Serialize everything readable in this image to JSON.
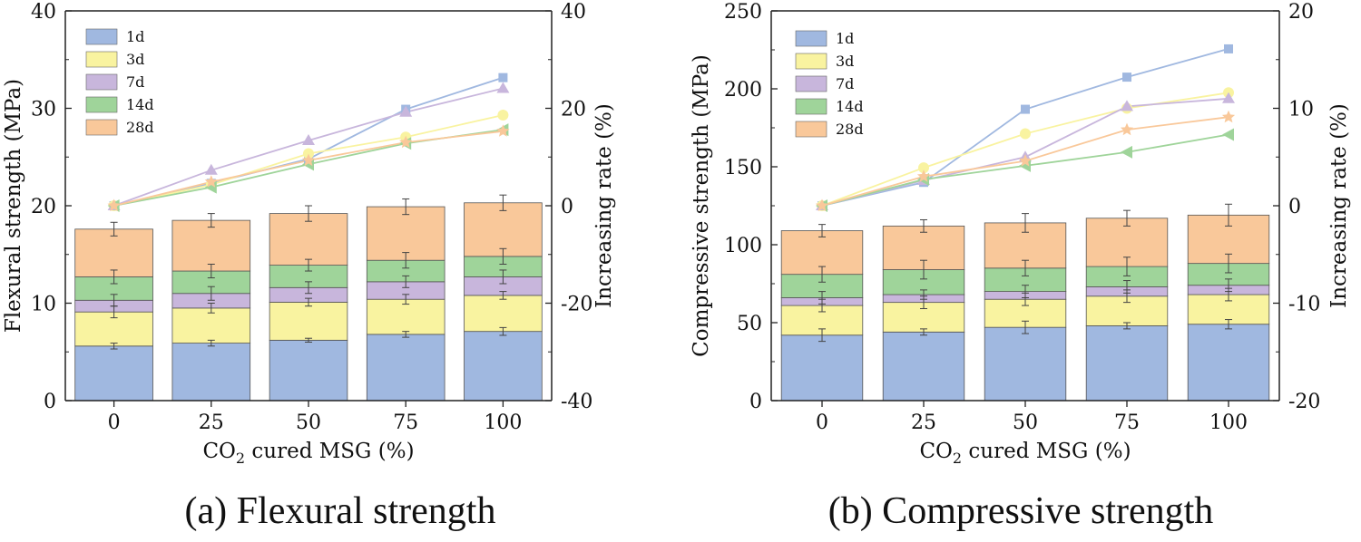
{
  "chart_data": [
    {
      "type": "bar",
      "subtype": "stacked-bar-with-lines",
      "caption": "(a) Flexural strength",
      "categories": [
        "0",
        "25",
        "50",
        "75",
        "100"
      ],
      "xlabel_main": "CO",
      "xlabel_sub": "2",
      "xlabel_rest": " cured MSG (%)",
      "ylabel": "Flexural strength (MPa)",
      "ylabel_right": "Increasing rate (%)",
      "ylim": [
        0,
        40
      ],
      "yticks": [
        "0",
        "10",
        "20",
        "30",
        "40"
      ],
      "ylim_right": [
        -40,
        40
      ],
      "yticks_right": [
        "-40",
        "-20",
        "0",
        "20",
        "40"
      ],
      "legend": [
        "1d",
        "3d",
        "7d",
        "14d",
        "28d"
      ],
      "colors": [
        "#a0b8e0",
        "#f9f3a0",
        "#c8b6dc",
        "#9fd49a",
        "#f9c89a"
      ],
      "line_colors": [
        "#a0b8e0",
        "#f9f3a0",
        "#c8b6dc",
        "#9fd49a",
        "#f9c89a"
      ],
      "markers": [
        "square",
        "circle",
        "triangle",
        "triangle-left",
        "star"
      ],
      "series": [
        {
          "name": "1d",
          "values": [
            5.6,
            5.9,
            6.2,
            6.8,
            7.1
          ],
          "errors": [
            0.3,
            0.3,
            0.2,
            0.3,
            0.4
          ]
        },
        {
          "name": "3d",
          "values": [
            9.1,
            9.5,
            10.1,
            10.4,
            10.8
          ],
          "errors": [
            0.6,
            0.5,
            0.4,
            0.5,
            0.4
          ]
        },
        {
          "name": "7d",
          "values": [
            10.3,
            11.0,
            11.6,
            12.2,
            12.7
          ],
          "errors": [
            0.6,
            0.7,
            0.6,
            0.6,
            0.7
          ]
        },
        {
          "name": "14d",
          "values": [
            12.7,
            13.3,
            13.9,
            14.4,
            14.8
          ],
          "errors": [
            0.7,
            0.7,
            0.6,
            0.8,
            0.8
          ]
        },
        {
          "name": "28d",
          "values": [
            17.6,
            18.5,
            19.2,
            19.9,
            20.3
          ],
          "errors": [
            0.7,
            0.7,
            0.8,
            0.8,
            0.8
          ]
        }
      ],
      "rate_series": [
        {
          "name": "1d",
          "values": [
            0,
            4.6,
            9.6,
            19.8,
            26.3
          ]
        },
        {
          "name": "3d",
          "values": [
            0,
            4.3,
            10.7,
            14.1,
            18.6
          ]
        },
        {
          "name": "7d",
          "values": [
            0,
            7.3,
            13.4,
            19.2,
            24.1
          ]
        },
        {
          "name": "14d",
          "values": [
            0,
            3.8,
            8.5,
            12.8,
            15.6
          ]
        },
        {
          "name": "28d",
          "values": [
            0,
            4.9,
            9.3,
            13.0,
            15.3
          ]
        }
      ]
    },
    {
      "type": "bar",
      "subtype": "stacked-bar-with-lines",
      "caption": "(b) Compressive strength",
      "categories": [
        "0",
        "25",
        "50",
        "75",
        "100"
      ],
      "xlabel_main": "CO",
      "xlabel_sub": "2",
      "xlabel_rest": " cured MSG (%)",
      "ylabel": "Compressive strength (MPa)",
      "ylabel_right": "Increasing rate (%)",
      "ylim": [
        0,
        250
      ],
      "yticks": [
        "0",
        "50",
        "100",
        "150",
        "200",
        "250"
      ],
      "ylim_right": [
        -20,
        20
      ],
      "yticks_right": [
        "-20",
        "-10",
        "0",
        "10",
        "20"
      ],
      "legend": [
        "1d",
        "3d",
        "7d",
        "14d",
        "28d"
      ],
      "colors": [
        "#a0b8e0",
        "#f9f3a0",
        "#c8b6dc",
        "#9fd49a",
        "#f9c89a"
      ],
      "line_colors": [
        "#a0b8e0",
        "#f9f3a0",
        "#c8b6dc",
        "#9fd49a",
        "#f9c89a"
      ],
      "markers": [
        "square",
        "circle",
        "triangle",
        "triangle-left",
        "star"
      ],
      "series": [
        {
          "name": "1d",
          "values": [
            42,
            44,
            47,
            48,
            49
          ],
          "errors": [
            4,
            2,
            4,
            2,
            3
          ]
        },
        {
          "name": "3d",
          "values": [
            61,
            63,
            65,
            67,
            68
          ],
          "errors": [
            4,
            4,
            4,
            4,
            4
          ]
        },
        {
          "name": "7d",
          "values": [
            66,
            68,
            70,
            73,
            74
          ],
          "errors": [
            4,
            3,
            4,
            4,
            4
          ]
        },
        {
          "name": "14d",
          "values": [
            81,
            84,
            85,
            86,
            88
          ],
          "errors": [
            5,
            6,
            5,
            6,
            6
          ]
        },
        {
          "name": "28d",
          "values": [
            109,
            112,
            114,
            117,
            119
          ],
          "errors": [
            4,
            4,
            6,
            5,
            7
          ]
        }
      ],
      "rate_series": [
        {
          "name": "1d",
          "values": [
            0,
            2.4,
            9.9,
            13.2,
            16.1
          ]
        },
        {
          "name": "3d",
          "values": [
            0,
            3.9,
            7.4,
            10.0,
            11.6
          ]
        },
        {
          "name": "7d",
          "values": [
            0,
            2.6,
            5.0,
            10.2,
            11.0
          ]
        },
        {
          "name": "14d",
          "values": [
            0,
            2.7,
            4.1,
            5.5,
            7.3
          ]
        },
        {
          "name": "28d",
          "values": [
            0,
            3.0,
            4.6,
            7.8,
            9.1
          ]
        }
      ]
    }
  ]
}
